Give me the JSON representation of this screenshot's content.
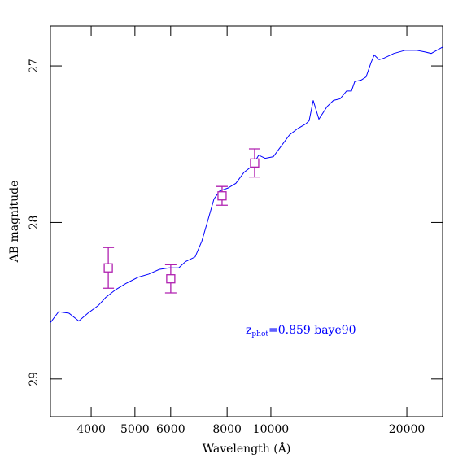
{
  "chart_data": {
    "type": "line",
    "xlabel": "Wavelength (Å)",
    "ylabel": "AB magnitude",
    "annotation": {
      "symbol": "z",
      "subscript": "phot",
      "text": "=0.859 baye90",
      "color": "#0000ff"
    },
    "xscale": "log",
    "xlim": [
      3250,
      24000
    ],
    "ylim": [
      29.24,
      26.745
    ],
    "xticks": [
      4000,
      5000,
      6000,
      8000,
      10000,
      20000
    ],
    "yticks": [
      27,
      28,
      29
    ],
    "series": [
      {
        "color": "#0000ff",
        "x": [
          3250,
          3388,
          3573,
          3756,
          3933,
          4150,
          4305,
          4529,
          4775,
          5081,
          5365,
          5662,
          5952,
          6252,
          6471,
          6796,
          7031,
          7213,
          7482,
          7697,
          8034,
          8366,
          8720,
          9090,
          9397,
          9714,
          10125,
          10553,
          11000,
          11468,
          11954,
          12154,
          12409,
          12774,
          13315,
          13761,
          14233,
          14712,
          15082,
          15334,
          15849,
          16248,
          16657,
          16937,
          17363,
          17802,
          18717,
          19830,
          21012,
          21906,
          22646,
          23990
        ],
        "values": [
          28.64,
          28.57,
          28.58,
          28.63,
          28.58,
          28.53,
          28.48,
          28.43,
          28.39,
          28.35,
          28.33,
          28.3,
          28.29,
          28.29,
          28.25,
          28.22,
          28.12,
          28.01,
          27.85,
          27.8,
          27.78,
          27.75,
          27.68,
          27.64,
          27.57,
          27.59,
          27.58,
          27.51,
          27.44,
          27.4,
          27.37,
          27.35,
          27.22,
          27.34,
          27.26,
          27.22,
          27.21,
          27.16,
          27.16,
          27.1,
          27.09,
          27.07,
          26.98,
          26.93,
          26.96,
          26.95,
          26.92,
          26.9,
          26.9,
          26.91,
          26.92,
          26.88
        ]
      }
    ],
    "points": {
      "color": "#b020b0",
      "x": [
        4365,
        6002,
        7797,
        9204
      ],
      "values": [
        28.29,
        28.36,
        27.83,
        27.62
      ],
      "errors": [
        0.13,
        0.09,
        0.06,
        0.09
      ]
    }
  }
}
